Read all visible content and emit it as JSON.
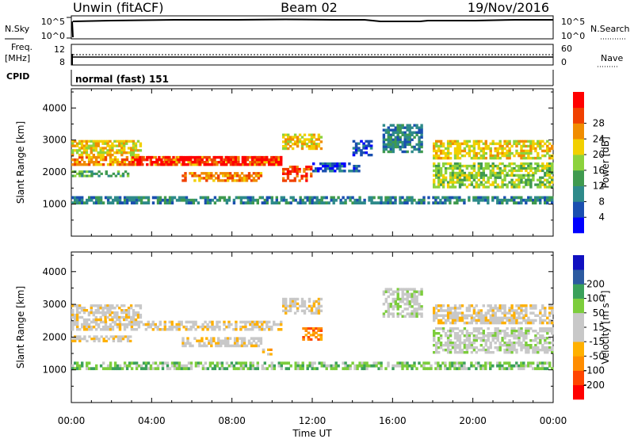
{
  "header": {
    "station": "Unwin (fitACF)",
    "beam": "Beam 02",
    "date": "19/Nov/2016"
  },
  "strip_panels": {
    "nsky": {
      "label": "N.Sky",
      "tick_top": "10^5",
      "tick_bottom": "10^0",
      "right_label": "N.Search",
      "right_tick_top": "10^5",
      "right_tick_bottom": "10^0"
    },
    "freq": {
      "label_line1": "Freq.",
      "label_line2": "[MHz]",
      "tick_top": "12",
      "tick_bottom": "8",
      "right_label": "Nave",
      "right_tick_top": "60",
      "right_tick_bottom": "0"
    },
    "cpid": {
      "label": "CPID",
      "value": "normal (fast) 151"
    }
  },
  "x_axis": {
    "label": "Time UT",
    "ticks": [
      "00:00",
      "04:00",
      "08:00",
      "12:00",
      "16:00",
      "20:00",
      "00:00"
    ]
  },
  "colors": {
    "power": [
      "#0000ff",
      "#1a4fb0",
      "#2e8a8a",
      "#3f9a4f",
      "#8cd23c",
      "#f2d000",
      "#f08c00",
      "#f04000",
      "#ff0000"
    ],
    "velocity": [
      "#ff0000",
      "#ff4500",
      "#ff8c00",
      "#ffb000",
      "#c8c8c8",
      "#c8c8c8",
      "#7ccd3c",
      "#3aa05a",
      "#2c5aa0",
      "#1010c0"
    ]
  },
  "chart_data": [
    {
      "type": "heatmap",
      "panel": "power",
      "ylabel": "Slant Range [km]",
      "ylim": [
        0,
        4600
      ],
      "yticks": [
        "1000",
        "2000",
        "3000",
        "4000"
      ],
      "xlim_hours": [
        0,
        24
      ],
      "colorbar_label": "Power [dB]",
      "colorbar_ticks": [
        "4",
        "8",
        "12",
        "16",
        "20",
        "24",
        "28"
      ],
      "bands": [
        {
          "start": 0.0,
          "end": 10.5,
          "range_from": 2200,
          "range_to": 2500,
          "level": 6
        },
        {
          "start": 3.0,
          "end": 10.5,
          "range_from": 2200,
          "range_to": 2500,
          "level": 8
        },
        {
          "start": 0.0,
          "end": 3.5,
          "range_from": 2500,
          "range_to": 3000,
          "level": 5
        },
        {
          "start": 0.0,
          "end": 3.0,
          "range_from": 1850,
          "range_to": 2050,
          "level": 3
        },
        {
          "start": 5.5,
          "end": 9.5,
          "range_from": 1700,
          "range_to": 2000,
          "level": 6
        },
        {
          "start": 10.5,
          "end": 12.5,
          "range_from": 2700,
          "range_to": 3200,
          "level": 5
        },
        {
          "start": 10.5,
          "end": 12.0,
          "range_from": 1700,
          "range_to": 2200,
          "level": 7
        },
        {
          "start": 12.0,
          "end": 14.5,
          "range_from": 2000,
          "range_to": 2300,
          "level": 1
        },
        {
          "start": 14.0,
          "end": 15.0,
          "range_from": 2500,
          "range_to": 3000,
          "level": 1
        },
        {
          "start": 15.5,
          "end": 17.5,
          "range_from": 2600,
          "range_to": 3500,
          "level": 2
        },
        {
          "start": 18.0,
          "end": 24.0,
          "range_from": 2400,
          "range_to": 3000,
          "level": 5
        },
        {
          "start": 18.0,
          "end": 24.0,
          "range_from": 1500,
          "range_to": 2300,
          "level": 4
        },
        {
          "start": 0.0,
          "end": 24.0,
          "range_from": 1000,
          "range_to": 1250,
          "level": 2
        }
      ]
    },
    {
      "type": "heatmap",
      "panel": "velocity",
      "ylabel": "Slant Range [km]",
      "ylim": [
        0,
        4600
      ],
      "yticks": [
        "1000",
        "2000",
        "3000",
        "4000"
      ],
      "xlim_hours": [
        0,
        24
      ],
      "colorbar_label": "Velocity [m s⁻¹]",
      "colorbar_ticks": [
        "-200",
        "-100",
        "-50",
        "-15",
        "15",
        "50",
        "100",
        "200"
      ],
      "bands": [
        {
          "start": 0.0,
          "end": 10.5,
          "range_from": 2200,
          "range_to": 2500,
          "level": 4
        },
        {
          "start": 0.0,
          "end": 3.5,
          "range_from": 2500,
          "range_to": 3000,
          "level": 4
        },
        {
          "start": 0.0,
          "end": 3.0,
          "range_from": 1850,
          "range_to": 2050,
          "level": 4
        },
        {
          "start": 5.5,
          "end": 9.5,
          "range_from": 1700,
          "range_to": 2000,
          "level": 4
        },
        {
          "start": 9.5,
          "end": 10.0,
          "range_from": 1450,
          "range_to": 1650,
          "level": 3
        },
        {
          "start": 10.5,
          "end": 12.5,
          "range_from": 2700,
          "range_to": 3200,
          "level": 4
        },
        {
          "start": 11.5,
          "end": 12.5,
          "range_from": 1900,
          "range_to": 2300,
          "level": 2
        },
        {
          "start": 15.5,
          "end": 17.5,
          "range_from": 2600,
          "range_to": 3500,
          "level": 5
        },
        {
          "start": 18.0,
          "end": 24.0,
          "range_from": 2400,
          "range_to": 3000,
          "level": 4
        },
        {
          "start": 18.0,
          "end": 24.0,
          "range_from": 1500,
          "range_to": 2300,
          "level": 5
        },
        {
          "start": 0.0,
          "end": 24.0,
          "range_from": 1000,
          "range_to": 1250,
          "level": 6
        }
      ]
    }
  ]
}
